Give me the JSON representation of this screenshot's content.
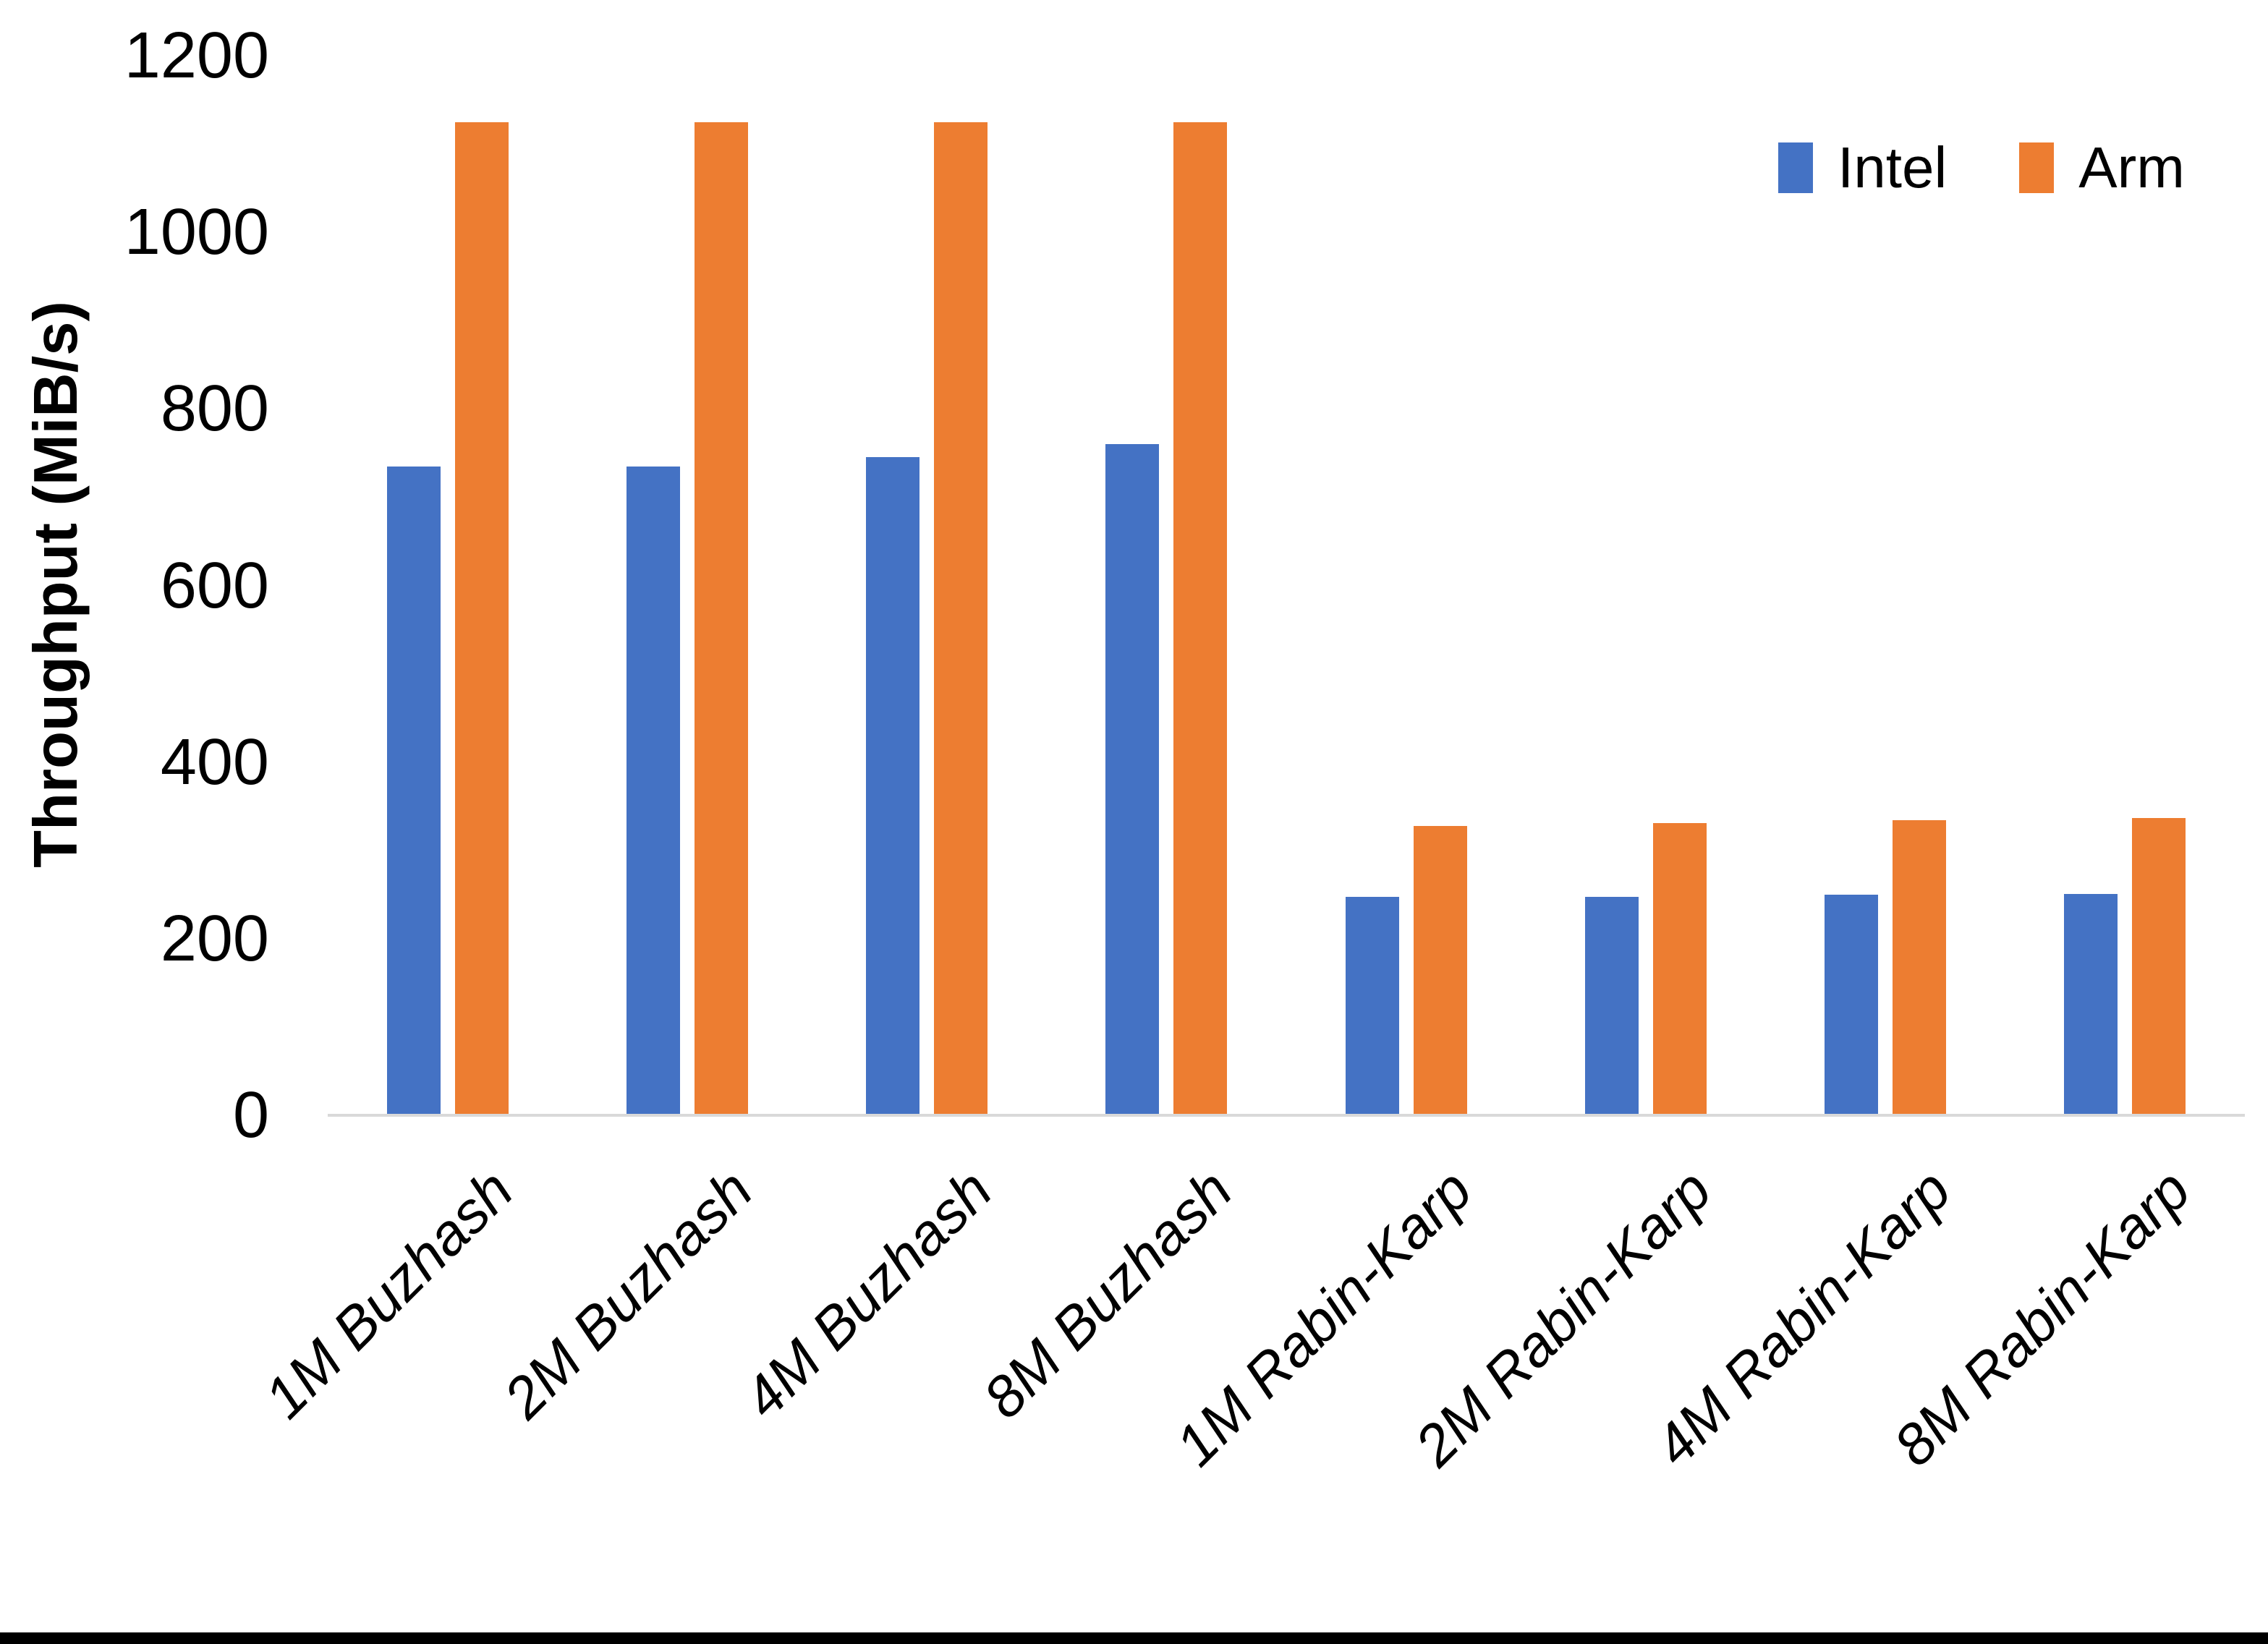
{
  "chart_data": {
    "type": "bar",
    "title": "",
    "xlabel": "",
    "ylabel": "Throughput (MiB/s)",
    "ylim": [
      0,
      1200
    ],
    "yticks": [
      0,
      200,
      400,
      600,
      800,
      1000,
      1200
    ],
    "grid": false,
    "legend_position": "top-right",
    "categories": [
      "1M Buzhash",
      "2M Buzhash",
      "4M Buzhash",
      "8M Buzhash",
      "1M Rabin-Karp",
      "2M Rabin-Karp",
      "4M Rabin-Karp",
      "8M Rabin-Karp"
    ],
    "series": [
      {
        "name": "Intel",
        "color": "#4472C4",
        "values": [
          735,
          735,
          745,
          760,
          247,
          247,
          250,
          251
        ]
      },
      {
        "name": "Arm",
        "color": "#ED7D31",
        "values": [
          1125,
          1125,
          1125,
          1125,
          328,
          331,
          334,
          337
        ]
      }
    ]
  },
  "colors": {
    "intel": "#4472C4",
    "arm": "#ED7D31",
    "axis_line": "#d9d9d9",
    "text": "#000000"
  }
}
